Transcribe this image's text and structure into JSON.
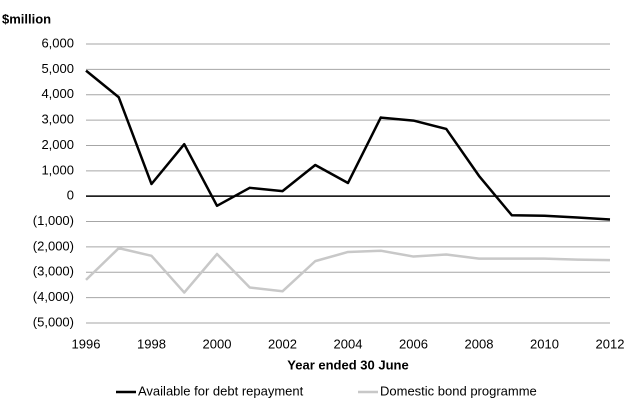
{
  "chart_data": {
    "type": "line",
    "y_label": "$million",
    "x_label": "Year ended 30 June",
    "x": [
      1996,
      1997,
      1998,
      1999,
      2000,
      2001,
      2002,
      2003,
      2004,
      2005,
      2006,
      2007,
      2008,
      2009,
      2010,
      2011,
      2012
    ],
    "series": [
      {
        "name": "Available for debt repayment",
        "color": "#000000",
        "values": [
          4950,
          3900,
          480,
          2050,
          -380,
          330,
          200,
          1230,
          520,
          3100,
          2980,
          2650,
          800,
          -750,
          -770,
          -840,
          -920
        ]
      },
      {
        "name": "Domestic bond programme",
        "color": "#c8c8c8",
        "values": [
          -3300,
          -2050,
          -2350,
          -3800,
          -2280,
          -3600,
          -3750,
          -2560,
          -2200,
          -2150,
          -2380,
          -2300,
          -2460,
          -2460,
          -2460,
          -2500,
          -2520
        ]
      }
    ],
    "xlim": [
      1996,
      2012
    ],
    "xticks": [
      1996,
      1998,
      2000,
      2002,
      2004,
      2006,
      2008,
      2010,
      2012
    ],
    "ylim": [
      -5000,
      6000
    ],
    "yticks": [
      {
        "value": -5000,
        "label": "(5,000)"
      },
      {
        "value": -4000,
        "label": "(4,000)"
      },
      {
        "value": -3000,
        "label": "(3,000)"
      },
      {
        "value": -2000,
        "label": "(2,000)"
      },
      {
        "value": -1000,
        "label": "(1,000)"
      },
      0,
      {
        "value": 1000,
        "label": "1,000"
      },
      {
        "value": 2000,
        "label": "2,000"
      },
      {
        "value": 3000,
        "label": "3,000"
      },
      {
        "value": 4000,
        "label": "4,000"
      },
      {
        "value": 5000,
        "label": "5,000"
      },
      {
        "value": 6000,
        "label": "6,000"
      }
    ],
    "grid": true,
    "legend": "bottom"
  }
}
